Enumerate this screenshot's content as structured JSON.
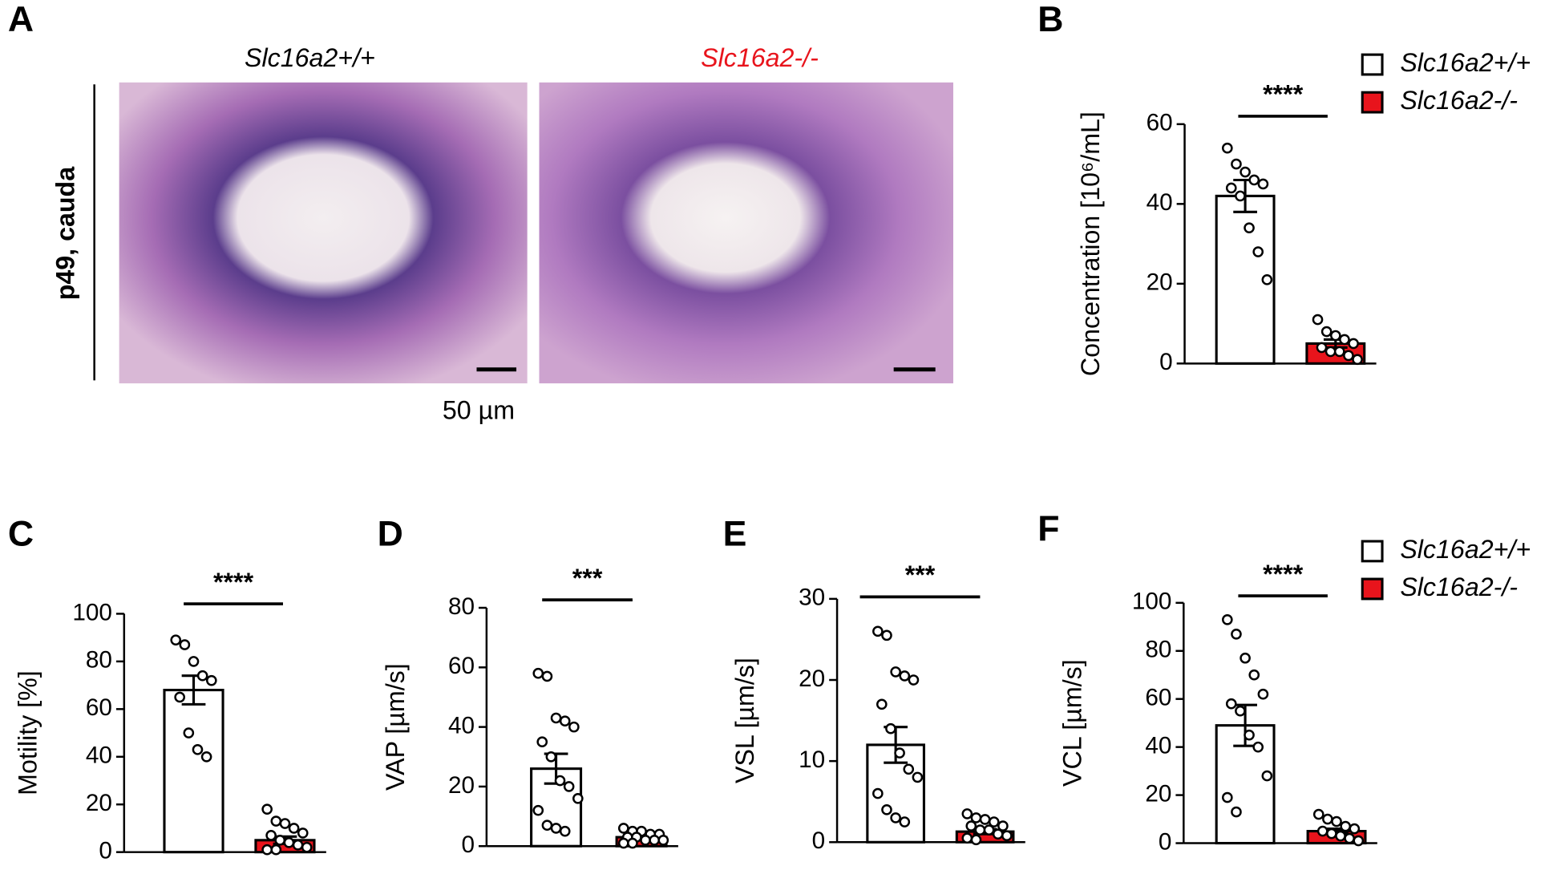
{
  "panel_a": {
    "label": "A",
    "left_title": "Slc16a2+/+",
    "right_title": "Slc16a2-/-",
    "row_label": "p49, cauda",
    "scale_bar": "50 µm"
  },
  "chart_data": [
    {
      "type": "bar",
      "panel": "B",
      "ylabel": "Concentration [10⁶/mL]",
      "ylim": [
        0,
        60
      ],
      "yticks": [
        0,
        20,
        40,
        60
      ],
      "significance": "****",
      "legend": "top-right",
      "series": [
        {
          "name": "Slc16a2+/+",
          "color": "#ffffff",
          "values": [
            42
          ],
          "error": [
            4
          ],
          "points": [
            54,
            50,
            48,
            46,
            45,
            44,
            42,
            34,
            28,
            21
          ]
        },
        {
          "name": "Slc16a2-/-",
          "color": "#e8141c",
          "values": [
            5
          ],
          "error": [
            1
          ],
          "points": [
            11,
            8,
            7,
            6,
            5,
            4,
            3,
            3,
            2,
            1
          ]
        }
      ]
    },
    {
      "type": "bar",
      "panel": "C",
      "ylabel": "Motility [%]",
      "ylim": [
        0,
        100
      ],
      "yticks": [
        0,
        20,
        40,
        60,
        80,
        100
      ],
      "significance": "****",
      "series": [
        {
          "color": "#ffffff",
          "values": [
            68
          ],
          "error": [
            6
          ],
          "points": [
            89,
            87,
            80,
            74,
            72,
            65,
            50,
            43,
            40
          ]
        },
        {
          "color": "#e8141c",
          "values": [
            5
          ],
          "error": [
            1.5
          ],
          "points": [
            18,
            13,
            12,
            10,
            8,
            7,
            5,
            4,
            3,
            2,
            1,
            1
          ]
        }
      ]
    },
    {
      "type": "bar",
      "panel": "D",
      "ylabel": "VAP [µm/s]",
      "ylim": [
        0,
        80
      ],
      "yticks": [
        0,
        20,
        40,
        60,
        80
      ],
      "significance": "***",
      "series": [
        {
          "color": "#ffffff",
          "values": [
            26
          ],
          "error": [
            5
          ],
          "points": [
            58,
            57,
            43,
            42,
            40,
            35,
            30,
            22,
            20,
            16,
            12,
            7,
            6,
            5
          ]
        },
        {
          "color": "#e8141c",
          "values": [
            3
          ],
          "error": [
            0.5
          ],
          "points": [
            6,
            5,
            5,
            4,
            4,
            3,
            3,
            2,
            2,
            2,
            1,
            1
          ]
        }
      ]
    },
    {
      "type": "bar",
      "panel": "E",
      "ylabel": "VSL [µm/s]",
      "ylim": [
        0,
        30
      ],
      "yticks": [
        0,
        10,
        20,
        30
      ],
      "significance": "***",
      "series": [
        {
          "color": "#ffffff",
          "values": [
            12
          ],
          "error": [
            2.2
          ],
          "points": [
            26,
            25.5,
            21,
            20.5,
            20,
            17,
            14,
            11,
            9,
            8,
            6,
            4,
            3,
            2.5
          ]
        },
        {
          "color": "#e8141c",
          "values": [
            1.3
          ],
          "error": [
            0.3
          ],
          "points": [
            3.5,
            3,
            2.8,
            2.5,
            2,
            2,
            1.5,
            1.5,
            1,
            0.8,
            0.5,
            0.3
          ]
        }
      ]
    },
    {
      "type": "bar",
      "panel": "F",
      "ylabel": "VCL [µm/s]",
      "ylim": [
        0,
        100
      ],
      "yticks": [
        0,
        20,
        40,
        60,
        80,
        100
      ],
      "significance": "****",
      "legend": "top-right",
      "series": [
        {
          "name": "Slc16a2+/+",
          "color": "#ffffff",
          "values": [
            49
          ],
          "error": [
            8.5
          ],
          "points": [
            93,
            87,
            77,
            70,
            62,
            58,
            55,
            45,
            40,
            28,
            19,
            13
          ]
        },
        {
          "name": "Slc16a2-/-",
          "color": "#e8141c",
          "values": [
            5
          ],
          "error": [
            1
          ],
          "points": [
            12,
            10,
            9,
            7,
            6,
            5,
            4,
            3,
            2,
            1
          ]
        }
      ]
    }
  ]
}
